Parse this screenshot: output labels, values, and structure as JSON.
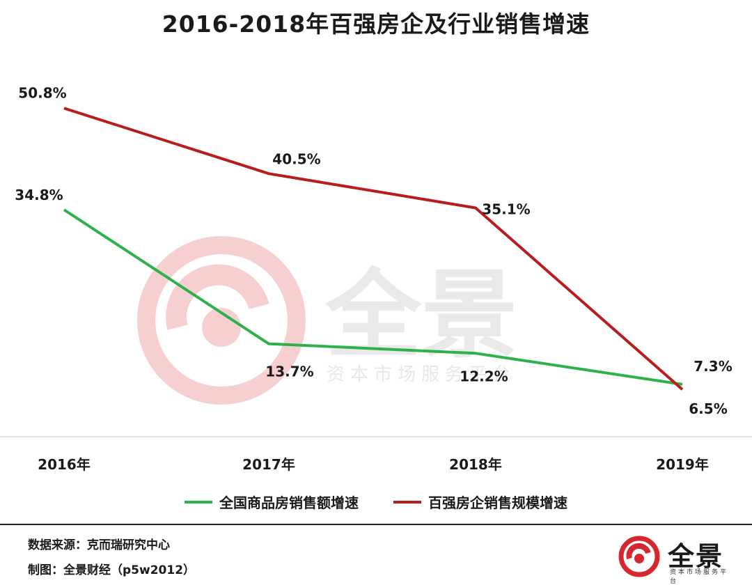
{
  "chart_data": {
    "type": "line",
    "title": "2016-2018年百强房企及行业销售增速",
    "categories": [
      "2016年",
      "2017年",
      "2018年",
      "2019年"
    ],
    "series": [
      {
        "name": "全国商品房销售额增速",
        "values": [
          34.8,
          13.7,
          12.2,
          7.3
        ],
        "labels": [
          "34.8%",
          "13.7%",
          "12.2%",
          "7.3%"
        ],
        "color": "#2db24a"
      },
      {
        "name": "百强房企销售规模增速",
        "values": [
          50.8,
          40.5,
          35.1,
          6.5
        ],
        "labels": [
          "50.8%",
          "40.5%",
          "35.1%",
          "6.5%"
        ],
        "color": "#b81c1c"
      }
    ],
    "ylim": [
      0,
      60
    ],
    "grid": false,
    "legend_position": "bottom"
  },
  "watermark": {
    "main": "全景",
    "sub": "资本市场服务平台",
    "color": "#f4c7c9"
  },
  "footer": {
    "source": "数据来源：克而瑞研究中心",
    "credit": "制图：全景财经（p5w2012）"
  },
  "logo": {
    "main": "全景",
    "sub": "资本市场服务平台",
    "color": "#d6262e"
  }
}
